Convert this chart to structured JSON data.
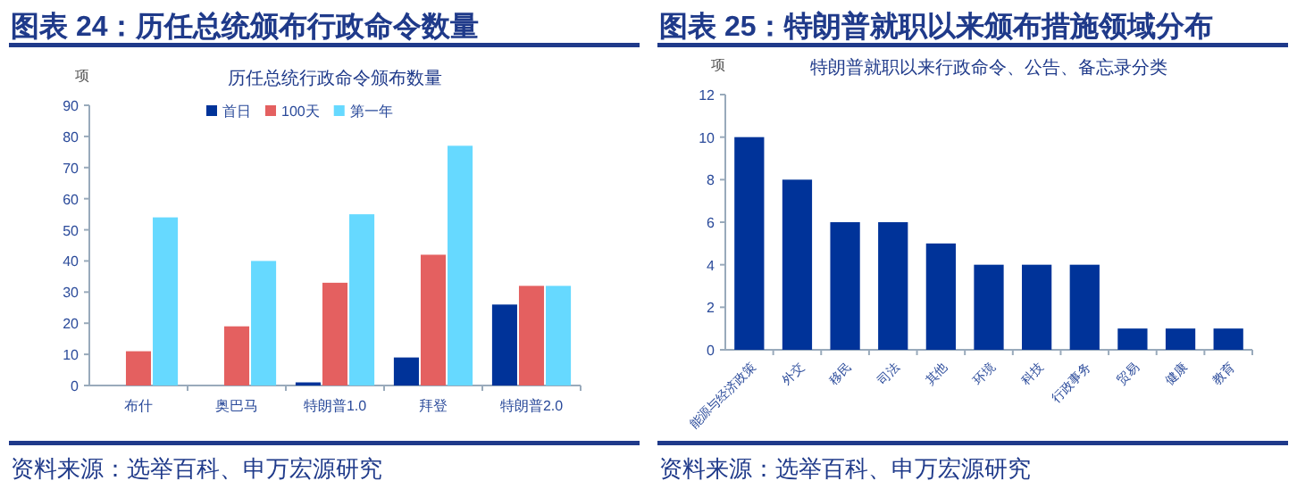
{
  "chart_data": [
    {
      "type": "bar",
      "title": "图表 24：历任总统颁布行政命令数量",
      "subtitle": "历任总统行政命令颁布数量",
      "ylabel": "项",
      "categories": [
        "布什",
        "奥巴马",
        "特朗普1.0",
        "拜登",
        "特朗普2.0"
      ],
      "series": [
        {
          "name": "首日",
          "color": "#003399",
          "values": [
            0,
            0,
            1,
            9,
            26
          ]
        },
        {
          "name": "100天",
          "color": "#e46060",
          "values": [
            11,
            19,
            33,
            42,
            32
          ]
        },
        {
          "name": "第一年",
          "color": "#66d9ff",
          "values": [
            54,
            40,
            55,
            77,
            32
          ]
        }
      ],
      "ylim": [
        0,
        90
      ],
      "yticks": [
        0,
        10,
        20,
        30,
        40,
        50,
        60,
        70,
        80,
        90
      ],
      "legend": "top",
      "annotations": [
        "资料来源：选举百科、申万宏源研究"
      ]
    },
    {
      "type": "bar",
      "title": "图表 25：特朗普就职以来颁布措施领域分布",
      "subtitle": "特朗普就职以来行政命令、公告、备忘录分类",
      "ylabel": "项",
      "categories": [
        "能源与经济政策",
        "外交",
        "移民",
        "司法",
        "其他",
        "环境",
        "科技",
        "行政事务",
        "贸易",
        "健康",
        "教育"
      ],
      "series": [
        {
          "color": "#003399",
          "values": [
            10,
            8,
            6,
            6,
            5,
            4,
            4,
            4,
            1,
            1,
            1
          ]
        }
      ],
      "ylim": [
        0,
        12
      ],
      "yticks": [
        0,
        2,
        4,
        6,
        8,
        10,
        12
      ],
      "annotations": [
        "资料来源：选举百科、申万宏源研究"
      ]
    }
  ]
}
